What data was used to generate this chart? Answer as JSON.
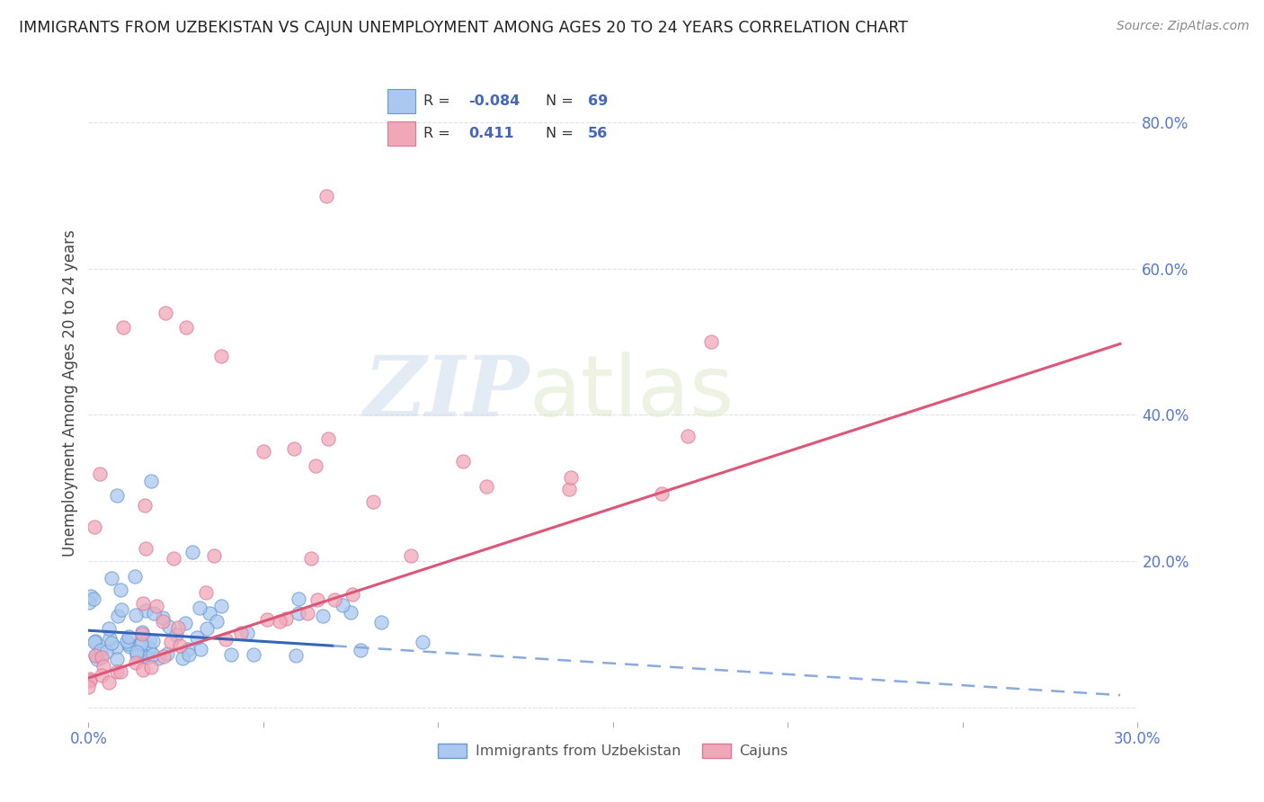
{
  "title": "IMMIGRANTS FROM UZBEKISTAN VS CAJUN UNEMPLOYMENT AMONG AGES 20 TO 24 YEARS CORRELATION CHART",
  "source": "Source: ZipAtlas.com",
  "ylabel": "Unemployment Among Ages 20 to 24 years",
  "xlim": [
    0.0,
    0.3
  ],
  "ylim": [
    -0.02,
    0.88
  ],
  "blue_color": "#aac8f0",
  "pink_color": "#f0a8b8",
  "blue_edge": "#6699cc",
  "pink_edge": "#dd7799",
  "blue_line_color": "#3366bb",
  "pink_line_color": "#dd5577",
  "blue_line_dashed_color": "#88aadd",
  "R_blue": -0.084,
  "N_blue": 69,
  "R_pink": 0.411,
  "N_pink": 56,
  "legend_label_blue": "Immigrants from Uzbekistan",
  "legend_label_pink": "Cajuns",
  "watermark_zip": "ZIP",
  "watermark_atlas": "atlas",
  "ytick_positions": [
    0.0,
    0.2,
    0.4,
    0.6,
    0.8
  ],
  "ytick_labels": [
    "",
    "20.0%",
    "40.0%",
    "60.0%",
    "80.0%"
  ],
  "grid_color": "#ddddee",
  "title_color": "#222222",
  "tick_color": "#5577cc",
  "source_color": "#888888"
}
